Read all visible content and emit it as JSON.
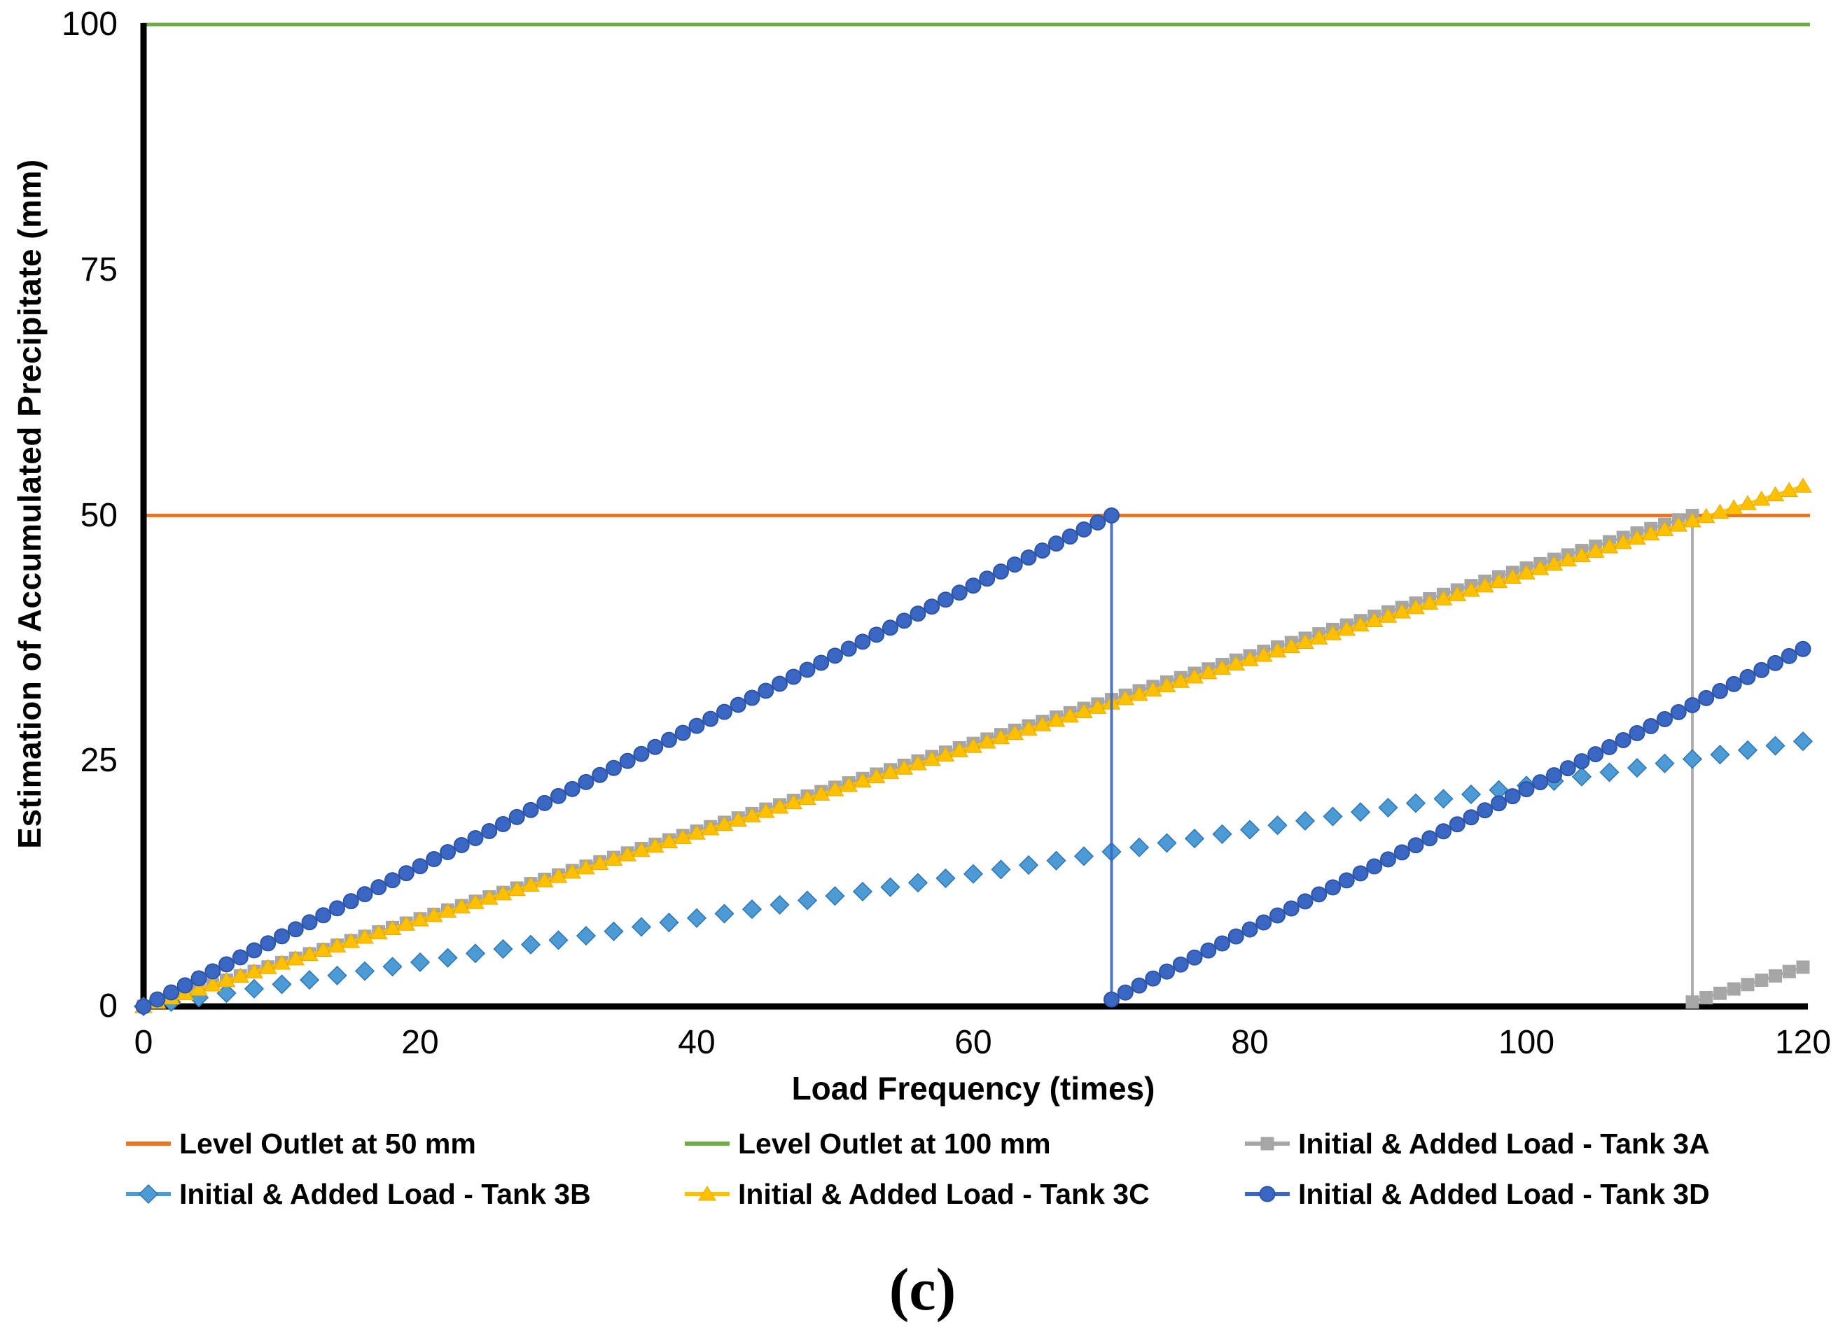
{
  "caption": "(c)",
  "chart_data": {
    "type": "line",
    "title": "",
    "xlabel": "Load Frequency (times)",
    "ylabel": "Estimation of Accumulated Precipitate (mm)",
    "xlim": [
      0,
      120
    ],
    "ylim": [
      0,
      100
    ],
    "x_ticks": [
      0,
      20,
      40,
      60,
      80,
      100,
      120
    ],
    "y_ticks": [
      100,
      75,
      50,
      25,
      0
    ],
    "grid": false,
    "legend_position": "bottom",
    "axis_color": "#000000",
    "series": [
      {
        "name": "Level Outlet at 50 mm",
        "kind": "hline",
        "y": 50,
        "color": "#ED7423",
        "stroke_width": 5
      },
      {
        "name": "Level Outlet at 100 mm",
        "kind": "hline",
        "y": 100,
        "color": "#70AD47",
        "stroke_width": 5
      },
      {
        "name": "Initial & Added Load - Tank 3A",
        "kind": "scatter-line",
        "marker": "square",
        "color": "#A6A6A6",
        "stroke_color": "#9B9B9B",
        "line": true,
        "x_step": 1,
        "segments": [
          {
            "from": [
              0,
              0
            ],
            "to": [
              112,
              50
            ]
          },
          {
            "from": [
              112,
              0.45
            ],
            "to": [
              120,
              4
            ]
          }
        ]
      },
      {
        "name": "Initial & Added Load - Tank 3B",
        "kind": "scatter-line",
        "marker": "diamond",
        "color": "#4D9BD5",
        "stroke_color": "#2E75B6",
        "line": false,
        "x_step": 2,
        "segments": [
          {
            "from": [
              0,
              0
            ],
            "to": [
              120,
              27
            ]
          }
        ]
      },
      {
        "name": "Initial & Added Load - Tank 3C",
        "kind": "scatter-line",
        "marker": "triangle",
        "color": "#FFC000",
        "stroke_color": "#E8AC00",
        "line": true,
        "x_step": 1,
        "segments": [
          {
            "from": [
              0,
              0
            ],
            "to": [
              120,
              53
            ]
          }
        ]
      },
      {
        "name": "Initial & Added Load - Tank 3D",
        "kind": "scatter-line",
        "marker": "circle",
        "color": "#3A67C4",
        "stroke_color": "#2E55A5",
        "line": true,
        "x_step": 1,
        "segments": [
          {
            "from": [
              0,
              0
            ],
            "to": [
              70,
              50
            ]
          },
          {
            "from": [
              70,
              0.7
            ],
            "to": [
              120,
              36.4
            ]
          }
        ]
      }
    ],
    "legend_rows": [
      [
        0,
        1,
        2
      ],
      [
        3,
        4,
        5
      ]
    ]
  }
}
